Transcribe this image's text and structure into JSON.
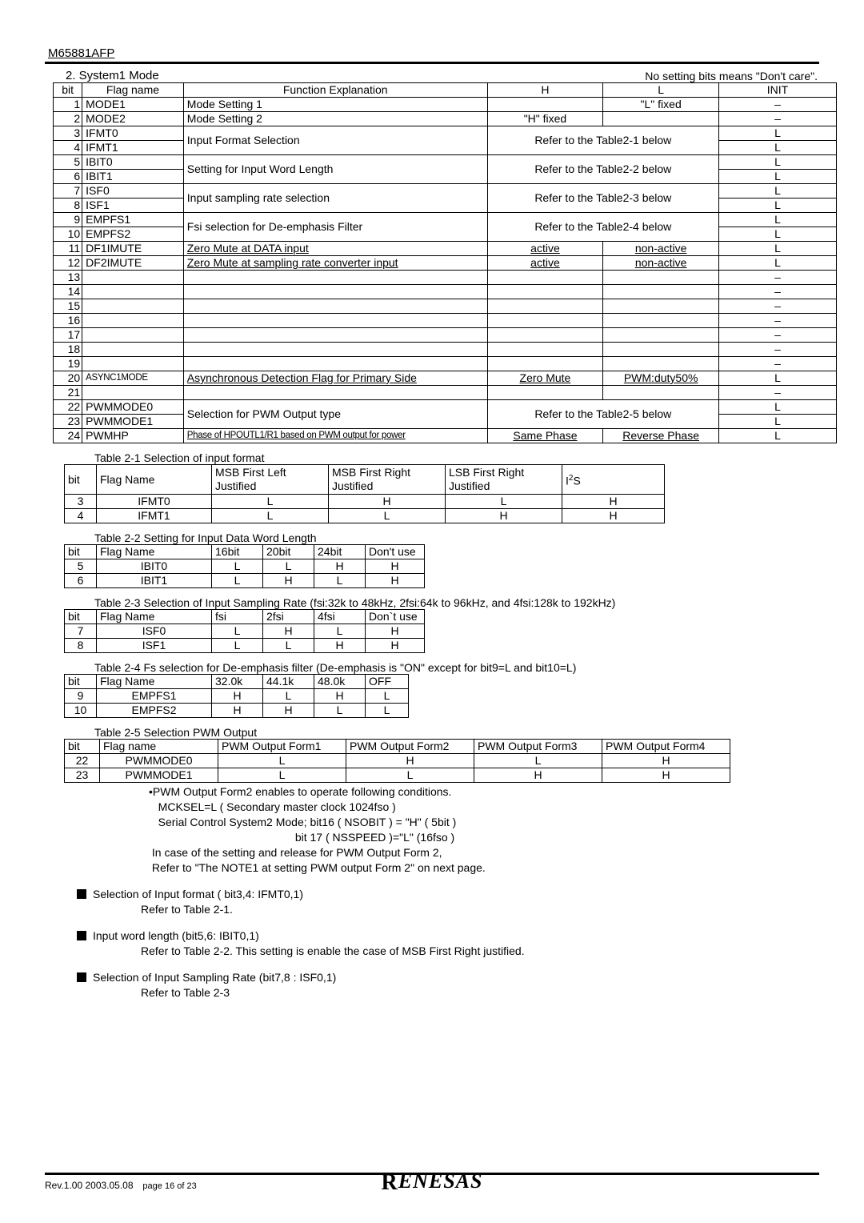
{
  "partNumber": "M65881AFP",
  "sectionTitle": "2. System1 Mode",
  "sectionNote": "No setting bits means \"Don't care\".",
  "mainTable": {
    "headers": {
      "bit": "bit",
      "flag": "Flag name",
      "fn": "Function Explanation",
      "H": "H",
      "L": "L",
      "init": "INIT"
    },
    "widths": {
      "bit": 32,
      "flag": 112,
      "fn": 336,
      "h": 128,
      "l": 128,
      "init": 130
    },
    "rows": [
      {
        "bit": "1",
        "flag": "MODE1",
        "fn": "Mode Setting 1",
        "h": "",
        "l": "\"L\" fixed",
        "init": "–",
        "span": 1
      },
      {
        "bit": "2",
        "flag": "MODE2",
        "fn": "Mode Setting 2",
        "h": "\"H\" fixed",
        "l": "",
        "init": "–",
        "span": 1
      },
      {
        "bit": "3",
        "flag": "IFMT0",
        "fn": "Input Format Selection",
        "hl": "Refer to the Table2-1 below",
        "init": "L",
        "span": 2,
        "bit2": "4",
        "flag2": "IFMT1",
        "init2": "L"
      },
      {
        "bit": "5",
        "flag": "IBIT0",
        "fn": "Setting for Input Word Length",
        "hl": "Refer to the Table2-2 below",
        "init": "L",
        "span": 2,
        "bit2": "6",
        "flag2": "IBIT1",
        "init2": "L"
      },
      {
        "bit": "7",
        "flag": "ISF0",
        "fn": "Input sampling rate selection",
        "hl": "Refer to the Table2-3 below",
        "init": "L",
        "span": 2,
        "bit2": "8",
        "flag2": "ISF1",
        "init2": "L"
      },
      {
        "bit": "9",
        "flag": "EMPFS1",
        "fn": "Fsi selection for De-emphasis Filter",
        "hl": "Refer to the Table2-4 below",
        "init": "L",
        "span": 2,
        "bit2": "10",
        "flag2": "EMPFS2",
        "init2": "L"
      },
      {
        "bit": "11",
        "flag": "DF1IMUTE",
        "fn": "Zero Mute at DATA input",
        "h": "active",
        "l": "non-active",
        "init": "L",
        "span": 1,
        "ul": true
      },
      {
        "bit": "12",
        "flag": "DF2IMUTE",
        "fn": "Zero Mute at sampling rate converter input",
        "h": "active",
        "l": "non-active",
        "init": "L",
        "span": 1,
        "ul": true
      },
      {
        "bit": "13",
        "flag": "",
        "fn": "",
        "h": "",
        "l": "",
        "init": "–",
        "span": 1
      },
      {
        "bit": "14",
        "flag": "",
        "fn": "",
        "h": "",
        "l": "",
        "init": "–",
        "span": 1
      },
      {
        "bit": "15",
        "flag": "",
        "fn": "",
        "h": "",
        "l": "",
        "init": "–",
        "span": 1
      },
      {
        "bit": "16",
        "flag": "",
        "fn": "",
        "h": "",
        "l": "",
        "init": "–",
        "span": 1
      },
      {
        "bit": "17",
        "flag": "",
        "fn": "",
        "h": "",
        "l": "",
        "init": "–",
        "span": 1
      },
      {
        "bit": "18",
        "flag": "",
        "fn": "",
        "h": "",
        "l": "",
        "init": "–",
        "span": 1
      },
      {
        "bit": "19",
        "flag": "",
        "fn": "",
        "h": "",
        "l": "",
        "init": "–",
        "span": 1
      },
      {
        "bit": "20",
        "flag": "ASYNC1MODE",
        "fn": "Asynchronous Detection Flag for Primary Side",
        "h": "Zero Mute",
        "l": "PWM:duty50%",
        "init": "L",
        "span": 1,
        "ul": true,
        "tight": true
      },
      {
        "bit": "21",
        "flag": "",
        "fn": "",
        "h": "",
        "l": "",
        "init": "–",
        "span": 1
      },
      {
        "bit": "22",
        "flag": "PWMMODE0",
        "fn": "Selection for PWM Output type",
        "hl": "Refer to the Table2-5 below",
        "init": "L",
        "span": 2,
        "bit2": "23",
        "flag2": "PWMMODE1",
        "init2": "L"
      },
      {
        "bit": "24",
        "flag": "PWMHP",
        "fn": "Phase of HPOUTL1/R1 based on PWM output for power",
        "h": "Same Phase",
        "l": "Reverse Phase",
        "init": "L",
        "span": 1,
        "ul": true,
        "phaseTight": true
      }
    ]
  },
  "t21": {
    "caption": "Table 2-1  Selection of input format",
    "headers": {
      "bit": "bit",
      "flag": "Flag Name",
      "c1": "MSB First Left Justified",
      "c2": "MSB First Right Justified",
      "c3": "LSB First Right Justified",
      "c4": "I"
    },
    "c4sup": "2",
    "c4suffix": "S",
    "widths": [
      40,
      144,
      146,
      146,
      146,
      128
    ],
    "rows": [
      {
        "bit": "3",
        "flag": "IFMT0",
        "v": [
          "L",
          "H",
          "L",
          "H"
        ]
      },
      {
        "bit": "4",
        "flag": "IFMT1",
        "v": [
          "L",
          "L",
          "H",
          "H"
        ]
      }
    ]
  },
  "t22": {
    "caption": "Table 2-2  Setting for Input Data Word Length",
    "headers": {
      "bit": "bit",
      "flag": "Flag Name",
      "c": [
        "16bit",
        "20bit",
        "24bit",
        "Don't use"
      ]
    },
    "widths": [
      40,
      144,
      64,
      64,
      64,
      74
    ],
    "rows": [
      {
        "bit": "5",
        "flag": "IBIT0",
        "v": [
          "L",
          "L",
          "H",
          "H"
        ]
      },
      {
        "bit": "6",
        "flag": "IBIT1",
        "v": [
          "L",
          "H",
          "L",
          "H"
        ]
      }
    ]
  },
  "t23": {
    "caption": "Table 2-3 Selection of Input Sampling Rate (fsi:32k to 48kHz, 2fsi:64k to 96kHz, and 4fsi:128k to 192kHz)",
    "headers": {
      "bit": "bit",
      "flag": "Flag Name",
      "c": [
        "fsi",
        "2fsi",
        "4fsi",
        "Don`t use"
      ]
    },
    "widths": [
      40,
      144,
      64,
      64,
      64,
      74
    ],
    "rows": [
      {
        "bit": "7",
        "flag": "ISF0",
        "v": [
          "L",
          "H",
          "L",
          "H"
        ]
      },
      {
        "bit": "8",
        "flag": "ISF1",
        "v": [
          "L",
          "L",
          "H",
          "H"
        ]
      }
    ]
  },
  "t24": {
    "caption": "Table 2-4  Fs selection for De-emphasis filter (De-emphasis is \"ON\" except for bit9=L and bit10=L)",
    "headers": {
      "bit": "bit",
      "flag": "Flag Name",
      "c": [
        "32.0k",
        "44.1k",
        "48.0k",
        "OFF"
      ]
    },
    "widths": [
      40,
      144,
      64,
      64,
      64,
      54
    ],
    "rows": [
      {
        "bit": "9",
        "flag": "EMPFS1",
        "v": [
          "H",
          "L",
          "H",
          "L"
        ]
      },
      {
        "bit": "10",
        "flag": "EMPFS2",
        "v": [
          "H",
          "H",
          "L",
          "L"
        ]
      }
    ]
  },
  "t25": {
    "caption": "Table 2-5 Selection PWM Output",
    "headers": {
      "bit": "bit",
      "flag": "Flag name",
      "c": [
        "PWM Output Form1",
        "PWM Output Form2",
        "PWM Output Form3",
        "PWM Output Form4"
      ]
    },
    "widths": [
      44,
      148,
      160,
      160,
      160,
      160
    ],
    "rows": [
      {
        "bit": "22",
        "flag": "PWMMODE0",
        "v": [
          "L",
          "H",
          "L",
          "H"
        ]
      },
      {
        "bit": "23",
        "flag": "PWMMODE1",
        "v": [
          "L",
          "L",
          "H",
          "H"
        ]
      }
    ]
  },
  "notesBlock": [
    "•PWM Output Form2 enables to operate following conditions.",
    "   MCKSEL=L ( Secondary master clock 1024fso )",
    "   Serial Control System2 Mode; bit16 ( NSOBIT ) = \"H\" ( 5bit )",
    "                                               bit 17 ( NSSPEED )=\"L\" (16fso )",
    " In case of the setting and release for PWM Output Form 2,",
    " Refer to \"The NOTE1 at setting PWM output Form 2\" on next page."
  ],
  "bullets": [
    {
      "t": "Selection of Input format ( bit3,4: IFMT0,1)",
      "r": "Refer to Table 2-1."
    },
    {
      "t": "Input word length (bit5,6: IBIT0,1)",
      "r": "Refer to Table 2-2. This setting is enable the case of MSB First Right justified."
    },
    {
      "t": "Selection of Input Sampling Rate (bit7,8 : ISF0,1)",
      "r": "Refer to Table 2-3"
    }
  ],
  "footer": {
    "rev": "Rev.1.00  2003.05.08",
    "page": "page 16 of 23",
    "logo": "RENESAS"
  }
}
